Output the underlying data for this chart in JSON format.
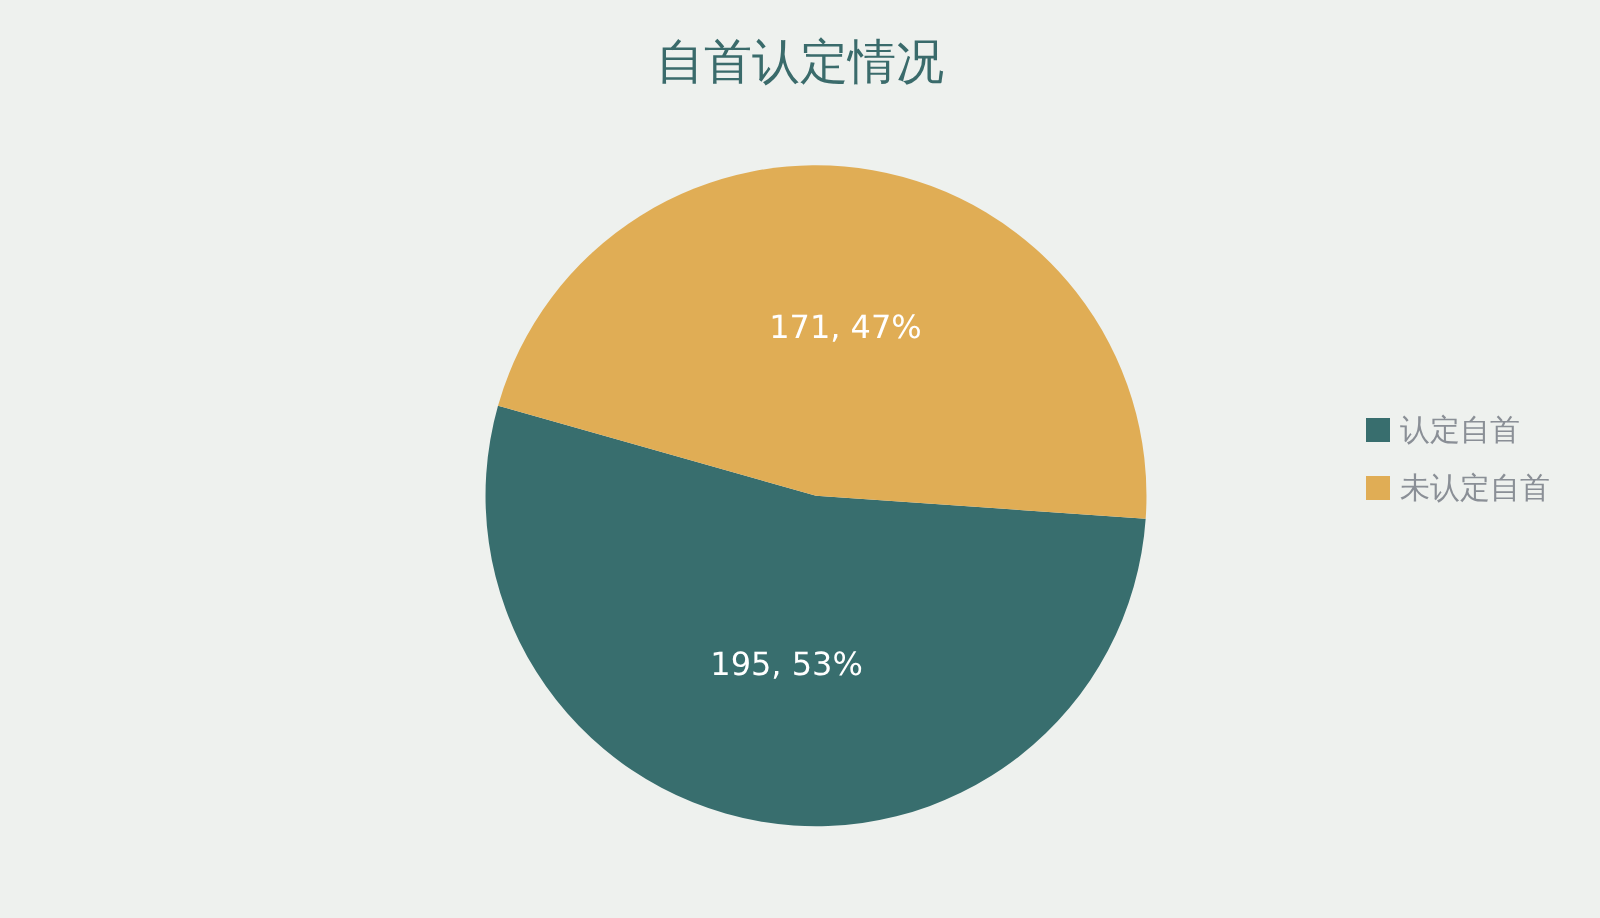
{
  "chart_data": {
    "type": "pie",
    "title": "自首认定情况",
    "categories": [
      "认定自首",
      "未认定自首"
    ],
    "values": [
      195,
      171
    ],
    "colors": [
      "#386e6e",
      "#e0ad55"
    ],
    "value_labels": [
      "195, 53%",
      "171, 47%"
    ],
    "legend": "right"
  }
}
